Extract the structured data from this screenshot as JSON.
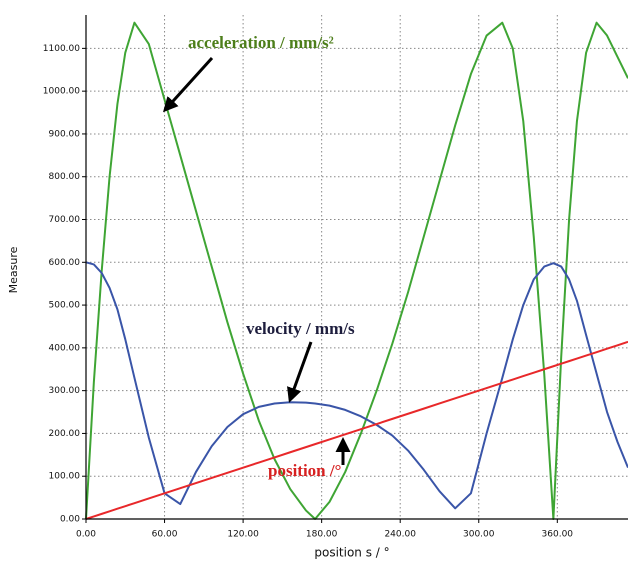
{
  "chart_data": {
    "type": "line",
    "x_label": "position s / °",
    "y_label": "Measure",
    "x": [
      0,
      6,
      12,
      18,
      24,
      30,
      37,
      48,
      60,
      72,
      84,
      96,
      108,
      120,
      132,
      144,
      156,
      168,
      175,
      186,
      198,
      210,
      222,
      234,
      246,
      258,
      270,
      282,
      294,
      306,
      318,
      326,
      334,
      342,
      350,
      357,
      363,
      369,
      375,
      382,
      390,
      398,
      406,
      414
    ],
    "series": [
      {
        "name": "acceleration",
        "color": "#3fa534",
        "values": [
          0,
          320,
          580,
          800,
          970,
          1090,
          1160,
          1110,
          980,
          850,
          720,
          590,
          460,
          340,
          230,
          140,
          70,
          20,
          0,
          40,
          110,
          200,
          300,
          410,
          530,
          660,
          790,
          920,
          1040,
          1130,
          1160,
          1100,
          930,
          660,
          340,
          0,
          380,
          700,
          930,
          1090,
          1160,
          1130,
          1080,
          1030
        ]
      },
      {
        "name": "velocity",
        "color": "#3a55a8",
        "values": [
          600,
          595,
          575,
          540,
          490,
          420,
          330,
          190,
          60,
          35,
          110,
          170,
          215,
          245,
          262,
          270,
          273,
          272,
          270,
          265,
          255,
          240,
          220,
          195,
          160,
          115,
          65,
          25,
          60,
          200,
          330,
          420,
          500,
          560,
          590,
          598,
          590,
          560,
          510,
          430,
          340,
          250,
          180,
          120
        ]
      },
      {
        "name": "position",
        "color": "#e8282a",
        "values": [
          0,
          6,
          12,
          18,
          24,
          30,
          37,
          48,
          60,
          72,
          84,
          96,
          108,
          120,
          132,
          144,
          156,
          168,
          175,
          186,
          198,
          210,
          222,
          234,
          246,
          258,
          270,
          282,
          294,
          306,
          318,
          326,
          334,
          342,
          350,
          357,
          363,
          369,
          375,
          382,
          390,
          398,
          406,
          414
        ]
      }
    ],
    "annotations": [
      "acceleration / mm/s²",
      "velocity / mm/s",
      "position /°"
    ],
    "xlim": [
      0,
      414
    ],
    "ylim": [
      0,
      1178
    ],
    "xticks": [
      {
        "value": 0,
        "label": "0.00"
      },
      {
        "value": 60,
        "label": "60.00"
      },
      {
        "value": 120,
        "label": "120.00"
      },
      {
        "value": 180,
        "label": "180.00"
      },
      {
        "value": 240,
        "label": "240.00"
      },
      {
        "value": 300,
        "label": "300.00"
      },
      {
        "value": 360,
        "label": "360.00"
      }
    ],
    "yticks": [
      {
        "value": 0,
        "label": "0.00"
      },
      {
        "value": 100,
        "label": "100.00"
      },
      {
        "value": 200,
        "label": "200.00"
      },
      {
        "value": 300,
        "label": "300.00"
      },
      {
        "value": 400,
        "label": "400.00"
      },
      {
        "value": 500,
        "label": "500.00"
      },
      {
        "value": 600,
        "label": "600.00"
      },
      {
        "value": 700,
        "label": "700.00"
      },
      {
        "value": 800,
        "label": "800.00"
      },
      {
        "value": 900,
        "label": "900.00"
      },
      {
        "value": 1000,
        "label": "1000.00"
      },
      {
        "value": 1100,
        "label": "1100.00"
      }
    ],
    "grid": true
  }
}
